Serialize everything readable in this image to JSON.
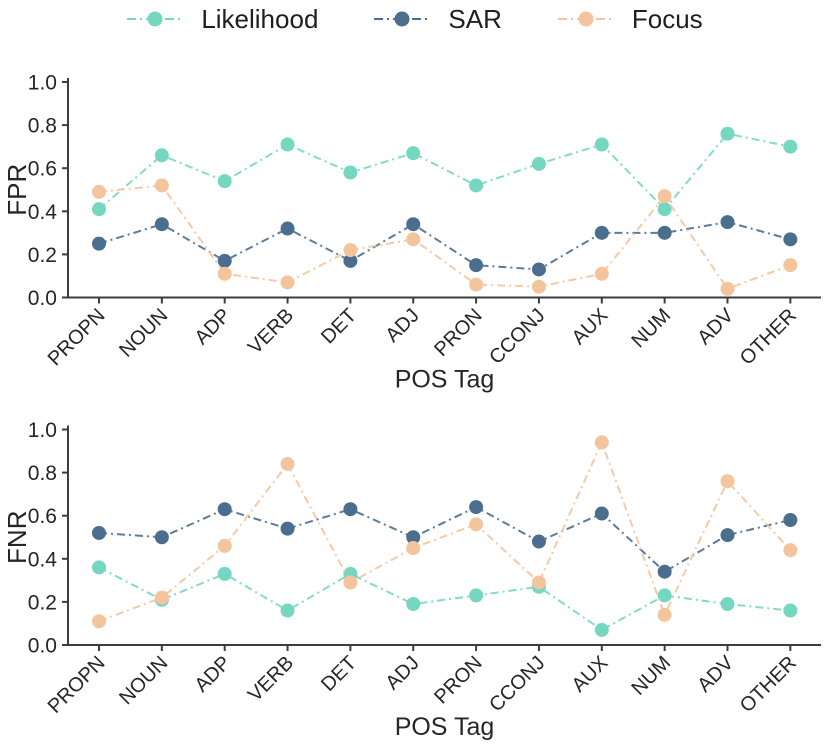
{
  "page": {
    "background": "#ffffff"
  },
  "legend": {
    "position": "top",
    "items": [
      {
        "label": "Likelihood",
        "color": "#76d7c1",
        "marker": "circle",
        "line_style": "dashdot"
      },
      {
        "label": "SAR",
        "color": "#4b6e8e",
        "marker": "circle",
        "line_style": "dashdot"
      },
      {
        "label": "Focus",
        "color": "#f4c49d",
        "marker": "circle",
        "line_style": "dashdot"
      }
    ]
  },
  "style": {
    "axis_color": "#3d3d3d",
    "text_color": "#262626",
    "marker_radius": 7,
    "line_width": 2
  },
  "chart_data": [
    {
      "type": "line",
      "title": "",
      "xlabel": "POS Tag",
      "ylabel": "FPR",
      "ylim": [
        0.0,
        1.0
      ],
      "yticks": [
        "0.0",
        "0.2",
        "0.4",
        "0.6",
        "0.8",
        "1.0"
      ],
      "grid": false,
      "legend_position": "top",
      "tick_label_rotation": 45,
      "categories": [
        "PROPN",
        "NOUN",
        "ADP",
        "VERB",
        "DET",
        "ADJ",
        "PRON",
        "CCONJ",
        "AUX",
        "NUM",
        "ADV",
        "OTHER"
      ],
      "series": [
        {
          "name": "Likelihood",
          "values": [
            0.41,
            0.66,
            0.54,
            0.71,
            0.58,
            0.67,
            0.52,
            0.62,
            0.71,
            0.41,
            0.76,
            0.7
          ]
        },
        {
          "name": "SAR",
          "values": [
            0.25,
            0.34,
            0.17,
            0.32,
            0.17,
            0.34,
            0.15,
            0.13,
            0.3,
            0.3,
            0.35,
            0.27
          ]
        },
        {
          "name": "Focus",
          "values": [
            0.49,
            0.52,
            0.11,
            0.07,
            0.22,
            0.27,
            0.06,
            0.05,
            0.11,
            0.47,
            0.04,
            0.15
          ]
        }
      ]
    },
    {
      "type": "line",
      "title": "",
      "xlabel": "POS Tag",
      "ylabel": "FNR",
      "ylim": [
        0.0,
        1.0
      ],
      "yticks": [
        "0.0",
        "0.2",
        "0.4",
        "0.6",
        "0.8",
        "1.0"
      ],
      "grid": false,
      "legend_position": "top",
      "tick_label_rotation": 45,
      "categories": [
        "PROPN",
        "NOUN",
        "ADP",
        "VERB",
        "DET",
        "ADJ",
        "PRON",
        "CCONJ",
        "AUX",
        "NUM",
        "ADV",
        "OTHER"
      ],
      "series": [
        {
          "name": "Likelihood",
          "values": [
            0.36,
            0.21,
            0.33,
            0.16,
            0.33,
            0.19,
            0.23,
            0.27,
            0.07,
            0.23,
            0.19,
            0.16
          ]
        },
        {
          "name": "SAR",
          "values": [
            0.52,
            0.5,
            0.63,
            0.54,
            0.63,
            0.5,
            0.64,
            0.48,
            0.61,
            0.34,
            0.51,
            0.58
          ]
        },
        {
          "name": "Focus",
          "values": [
            0.11,
            0.22,
            0.46,
            0.84,
            0.29,
            0.45,
            0.56,
            0.29,
            0.94,
            0.14,
            0.76,
            0.44
          ]
        }
      ]
    }
  ]
}
